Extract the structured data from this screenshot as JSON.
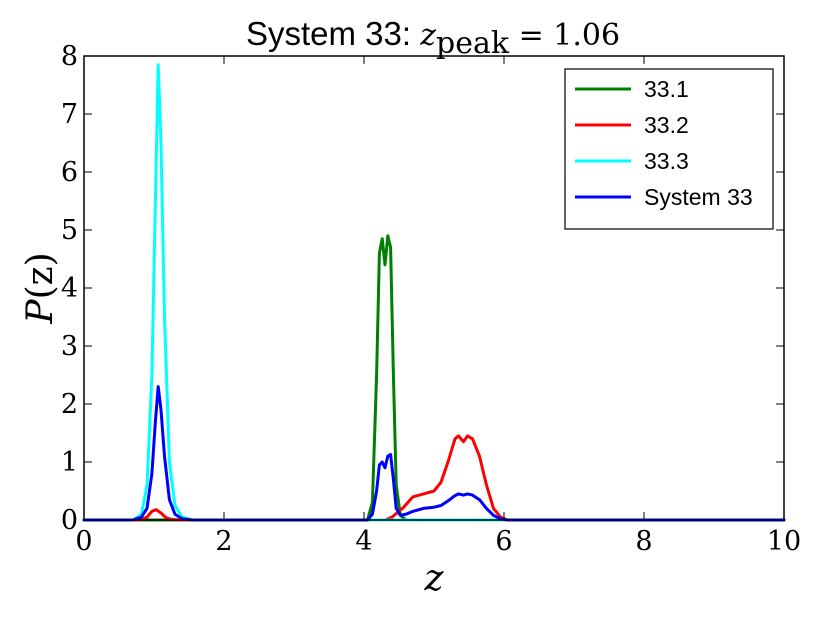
{
  "chart_data": {
    "type": "line",
    "title_prefix": "System 33: ",
    "title_var": "z",
    "title_sub": "peak",
    "title_value": " = 1.06",
    "xlabel": "z",
    "ylabel_var": "P",
    "ylabel_arg": "(z)",
    "xlim": [
      0,
      10
    ],
    "ylim": [
      0,
      8
    ],
    "xticks": [
      0,
      2,
      4,
      6,
      8,
      10
    ],
    "xtick_labels": [
      "0",
      "2",
      "4",
      "6",
      "8",
      "10"
    ],
    "yticks": [
      0,
      1,
      2,
      3,
      4,
      5,
      6,
      7,
      8
    ],
    "ytick_labels": [
      "0",
      "1",
      "2",
      "3",
      "4",
      "5",
      "6",
      "7",
      "8"
    ],
    "grid": false,
    "legend_position": "top-right",
    "series": [
      {
        "name": "33.1",
        "color": "#008000",
        "x": [
          0,
          4.05,
          4.12,
          4.18,
          4.22,
          4.26,
          4.3,
          4.34,
          4.38,
          4.42,
          4.46,
          4.52,
          4.6,
          10
        ],
        "y": [
          0,
          0,
          0.3,
          2.5,
          4.6,
          4.85,
          4.4,
          4.9,
          4.7,
          2.5,
          0.6,
          0.08,
          0,
          0
        ]
      },
      {
        "name": "33.2",
        "color": "#ff0000",
        "x": [
          0,
          0.8,
          0.9,
          0.97,
          1.03,
          1.1,
          1.17,
          1.25,
          1.35,
          4.3,
          4.4,
          4.55,
          4.7,
          4.85,
          5.0,
          5.1,
          5.2,
          5.3,
          5.35,
          5.42,
          5.48,
          5.55,
          5.65,
          5.75,
          5.85,
          5.95,
          6.05,
          10
        ],
        "y": [
          0,
          0,
          0.05,
          0.15,
          0.18,
          0.12,
          0.04,
          0.01,
          0,
          0,
          0.05,
          0.2,
          0.4,
          0.45,
          0.5,
          0.65,
          1.0,
          1.4,
          1.45,
          1.35,
          1.45,
          1.4,
          1.1,
          0.6,
          0.2,
          0.05,
          0,
          0
        ]
      },
      {
        "name": "33.3",
        "color": "#00ffff",
        "x": [
          0,
          0.7,
          0.82,
          0.9,
          0.97,
          1.02,
          1.06,
          1.1,
          1.15,
          1.22,
          1.3,
          1.4,
          1.55,
          10
        ],
        "y": [
          0,
          0,
          0.1,
          0.6,
          2.5,
          5.5,
          7.85,
          6.5,
          3.5,
          1.0,
          0.25,
          0.05,
          0,
          0
        ]
      },
      {
        "name": "System 33",
        "color": "#0000ff",
        "x": [
          0,
          0.7,
          0.82,
          0.9,
          0.97,
          1.02,
          1.06,
          1.1,
          1.15,
          1.22,
          1.3,
          1.4,
          1.55,
          4.05,
          4.12,
          4.18,
          4.22,
          4.26,
          4.3,
          4.34,
          4.38,
          4.42,
          4.46,
          4.52,
          4.6,
          4.7,
          4.85,
          5.0,
          5.1,
          5.2,
          5.3,
          5.35,
          5.42,
          5.48,
          5.55,
          5.65,
          5.75,
          5.85,
          5.95,
          6.05,
          10
        ],
        "y": [
          0,
          0,
          0.05,
          0.2,
          0.8,
          1.7,
          2.3,
          1.9,
          1.1,
          0.35,
          0.1,
          0.02,
          0,
          0,
          0.1,
          0.5,
          0.95,
          1.0,
          0.9,
          1.1,
          1.13,
          0.7,
          0.2,
          0.08,
          0.1,
          0.15,
          0.2,
          0.22,
          0.25,
          0.33,
          0.42,
          0.45,
          0.43,
          0.45,
          0.43,
          0.35,
          0.2,
          0.08,
          0.02,
          0,
          0
        ]
      }
    ]
  }
}
